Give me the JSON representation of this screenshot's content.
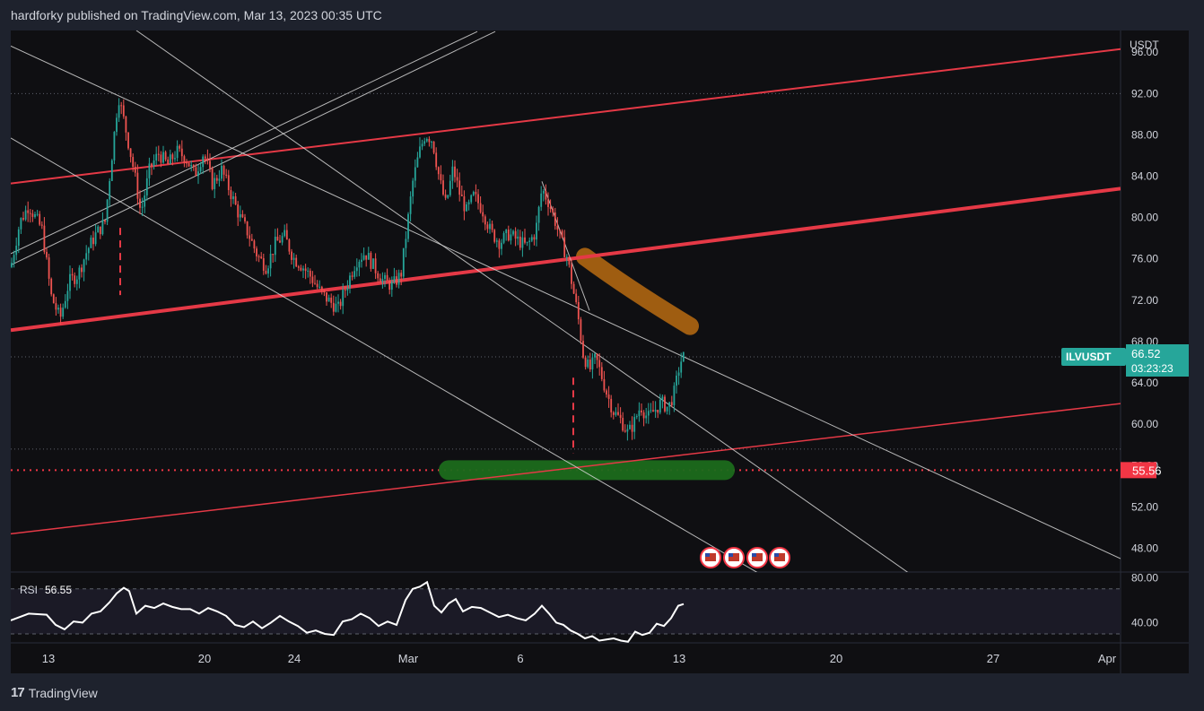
{
  "header": {
    "text": "hardforky published on TradingView.com, Mar 13, 2023 00:35 UTC"
  },
  "footer": {
    "logo_mark": "17",
    "logo_text": "TradingView"
  },
  "colors": {
    "background": "#0f0f12",
    "page": "#1e222d",
    "up": "#26a69a",
    "down": "#ef5350",
    "channel_red": "#e53946",
    "line_white": "#d6d6d6",
    "highlight_orange": "#b86b12",
    "highlight_green": "#1c6b1c",
    "rsi_line": "#ffffff",
    "label_teal": "#26a69a",
    "label_red": "#f23645"
  },
  "chart_data": {
    "type": "candlestick",
    "symbol": "ILVUSDT",
    "currency_label": "USDT",
    "price_axis": {
      "ticks": [
        "96.00",
        "92.00",
        "88.00",
        "84.00",
        "80.00",
        "76.00",
        "72.00",
        "68.00",
        "64.00",
        "60.00",
        "56.00",
        "52.00",
        "48.00"
      ],
      "ylim": [
        45.7,
        98.1
      ]
    },
    "time_axis": {
      "ticks": [
        "13",
        "20",
        "24",
        "Mar",
        "6",
        "13",
        "20",
        "27",
        "Apr"
      ]
    },
    "last_price": {
      "value": "66.52",
      "countdown": "03:23:23"
    },
    "support_level": {
      "value": "55.56"
    },
    "hidden_level": {
      "value": "64.00"
    },
    "candles_note": "approximate hourly OHLC path, Feb 13 - Mar 13 2023",
    "path": [
      [
        0,
        75.2
      ],
      [
        10,
        79.5
      ],
      [
        20,
        81.2
      ],
      [
        35,
        78.8
      ],
      [
        45,
        72.4
      ],
      [
        55,
        70.2
      ],
      [
        65,
        73.8
      ],
      [
        75,
        74.5
      ],
      [
        85,
        76.8
      ],
      [
        95,
        78.4
      ],
      [
        105,
        79.6
      ],
      [
        112,
        85.4
      ],
      [
        120,
        91.8
      ],
      [
        128,
        88.6
      ],
      [
        138,
        84.2
      ],
      [
        145,
        80.4
      ],
      [
        155,
        84.8
      ],
      [
        165,
        86.2
      ],
      [
        175,
        85.1
      ],
      [
        185,
        86.4
      ],
      [
        195,
        85.8
      ],
      [
        205,
        84.1
      ],
      [
        215,
        86.3
      ],
      [
        225,
        83.2
      ],
      [
        235,
        84.6
      ],
      [
        245,
        82.4
      ],
      [
        255,
        80.1
      ],
      [
        265,
        78.4
      ],
      [
        275,
        76.3
      ],
      [
        285,
        75.2
      ],
      [
        295,
        77.5
      ],
      [
        305,
        78.2
      ],
      [
        315,
        76.1
      ],
      [
        325,
        75.3
      ],
      [
        335,
        74.2
      ],
      [
        345,
        72.8
      ],
      [
        355,
        71.9
      ],
      [
        365,
        71.2
      ],
      [
        375,
        73.6
      ],
      [
        385,
        75.8
      ],
      [
        395,
        76.6
      ],
      [
        405,
        75.2
      ],
      [
        415,
        73.9
      ],
      [
        425,
        73.4
      ],
      [
        435,
        74.5
      ],
      [
        441,
        78.6
      ],
      [
        448,
        83.4
      ],
      [
        455,
        86.2
      ],
      [
        462,
        88.1
      ],
      [
        470,
        87.5
      ],
      [
        478,
        83.6
      ],
      [
        485,
        81.2
      ],
      [
        493,
        84.8
      ],
      [
        500,
        82.4
      ],
      [
        508,
        80.6
      ],
      [
        516,
        82.1
      ],
      [
        525,
        80.9
      ],
      [
        535,
        78.6
      ],
      [
        545,
        77.6
      ],
      [
        555,
        78.4
      ],
      [
        565,
        77.8
      ],
      [
        575,
        77.2
      ],
      [
        585,
        78.6
      ],
      [
        592,
        82.8
      ],
      [
        600,
        81.4
      ],
      [
        607,
        79.6
      ],
      [
        613,
        77.8
      ],
      [
        620,
        76.2
      ],
      [
        626,
        73.4
      ],
      [
        632,
        70.6
      ],
      [
        638,
        66.8
      ],
      [
        645,
        65.2
      ],
      [
        652,
        66.4
      ],
      [
        658,
        64.8
      ],
      [
        665,
        62.8
      ],
      [
        672,
        61.2
      ],
      [
        680,
        60.4
      ],
      [
        688,
        59.1
      ],
      [
        695,
        60.2
      ],
      [
        702,
        61.8
      ],
      [
        710,
        60.6
      ],
      [
        718,
        61.4
      ],
      [
        725,
        62.1
      ],
      [
        733,
        61.6
      ],
      [
        740,
        63.2
      ],
      [
        746,
        66.0
      ],
      [
        750,
        66.52
      ]
    ],
    "lines": [
      {
        "name": "red_upper",
        "p1": [
          0,
          83.3
        ],
        "p2": [
          1237,
          96.3
        ],
        "color": "red",
        "width": 2
      },
      {
        "name": "red_mid",
        "p1": [
          0,
          69.1
        ],
        "p2": [
          1237,
          82.8
        ],
        "color": "red",
        "width": 4
      },
      {
        "name": "red_lower",
        "p1": [
          0,
          49.4
        ],
        "p2": [
          1237,
          62.0
        ],
        "color": "red",
        "width": 1.5
      },
      {
        "name": "white_desc_1",
        "p1": [
          0,
          96.6
        ],
        "p2": [
          1237,
          47.0
        ],
        "color": "white",
        "width": 1
      },
      {
        "name": "white_desc_2",
        "p1": [
          140,
          98.1
        ],
        "p2": [
          1060,
          42.0
        ],
        "color": "white",
        "width": 1
      },
      {
        "name": "white_desc_3",
        "p1": [
          0,
          87.7
        ],
        "p2": [
          855,
          44.5
        ],
        "color": "white",
        "width": 1
      },
      {
        "name": "white_asc_1",
        "p1": [
          0,
          76.5
        ],
        "p2": [
          520,
          98.0
        ],
        "color": "white",
        "width": 1
      },
      {
        "name": "white_asc_2",
        "p1": [
          0,
          75.4
        ],
        "p2": [
          540,
          98.0
        ],
        "color": "white",
        "width": 1
      },
      {
        "name": "white_steep",
        "p1": [
          592,
          83.5
        ],
        "p2": [
          645,
          71.0
        ],
        "color": "white",
        "width": 1
      }
    ],
    "vertical_markers": [
      {
        "x": 122,
        "from": 79.0,
        "to": 72.5
      },
      {
        "x": 627,
        "from": 64.5,
        "to": 57.2
      }
    ],
    "dotted_levels": [
      {
        "value": 92.0,
        "color": "grey"
      },
      {
        "value": 66.52,
        "color": "grey"
      },
      {
        "value": 57.6,
        "color": "grey"
      },
      {
        "value": 55.56,
        "color": "red"
      }
    ],
    "rsi": {
      "label": "RSI",
      "value": "56.55",
      "ticks": [
        "80.00",
        "40.00"
      ],
      "bands": [
        70,
        30
      ],
      "ylim": [
        22,
        85
      ],
      "values": [
        [
          0,
          42
        ],
        [
          20,
          48
        ],
        [
          40,
          47
        ],
        [
          50,
          38
        ],
        [
          60,
          34
        ],
        [
          70,
          41
        ],
        [
          80,
          40
        ],
        [
          90,
          48
        ],
        [
          100,
          50
        ],
        [
          110,
          58
        ],
        [
          118,
          66
        ],
        [
          126,
          71
        ],
        [
          132,
          68
        ],
        [
          140,
          48
        ],
        [
          150,
          55
        ],
        [
          160,
          53
        ],
        [
          170,
          57
        ],
        [
          180,
          54
        ],
        [
          190,
          52
        ],
        [
          200,
          52
        ],
        [
          210,
          48
        ],
        [
          220,
          53
        ],
        [
          230,
          50
        ],
        [
          240,
          46
        ],
        [
          250,
          38
        ],
        [
          260,
          36
        ],
        [
          270,
          41
        ],
        [
          280,
          35
        ],
        [
          290,
          40
        ],
        [
          300,
          46
        ],
        [
          310,
          41
        ],
        [
          320,
          37
        ],
        [
          330,
          31
        ],
        [
          340,
          33
        ],
        [
          350,
          30
        ],
        [
          360,
          29
        ],
        [
          370,
          41
        ],
        [
          380,
          43
        ],
        [
          390,
          48
        ],
        [
          400,
          44
        ],
        [
          410,
          37
        ],
        [
          420,
          41
        ],
        [
          430,
          38
        ],
        [
          440,
          60
        ],
        [
          448,
          70
        ],
        [
          456,
          72
        ],
        [
          464,
          76
        ],
        [
          472,
          55
        ],
        [
          480,
          49
        ],
        [
          488,
          57
        ],
        [
          496,
          61
        ],
        [
          504,
          50
        ],
        [
          514,
          54
        ],
        [
          524,
          53
        ],
        [
          534,
          49
        ],
        [
          544,
          45
        ],
        [
          554,
          47
        ],
        [
          564,
          44
        ],
        [
          574,
          42
        ],
        [
          584,
          48
        ],
        [
          592,
          55
        ],
        [
          600,
          48
        ],
        [
          608,
          40
        ],
        [
          616,
          38
        ],
        [
          624,
          33
        ],
        [
          632,
          30
        ],
        [
          640,
          26
        ],
        [
          648,
          28
        ],
        [
          656,
          24
        ],
        [
          664,
          25
        ],
        [
          672,
          26
        ],
        [
          680,
          24
        ],
        [
          688,
          23
        ],
        [
          696,
          32
        ],
        [
          704,
          29
        ],
        [
          712,
          31
        ],
        [
          720,
          39
        ],
        [
          728,
          37
        ],
        [
          736,
          44
        ],
        [
          744,
          55
        ],
        [
          750,
          56.55
        ]
      ]
    }
  }
}
